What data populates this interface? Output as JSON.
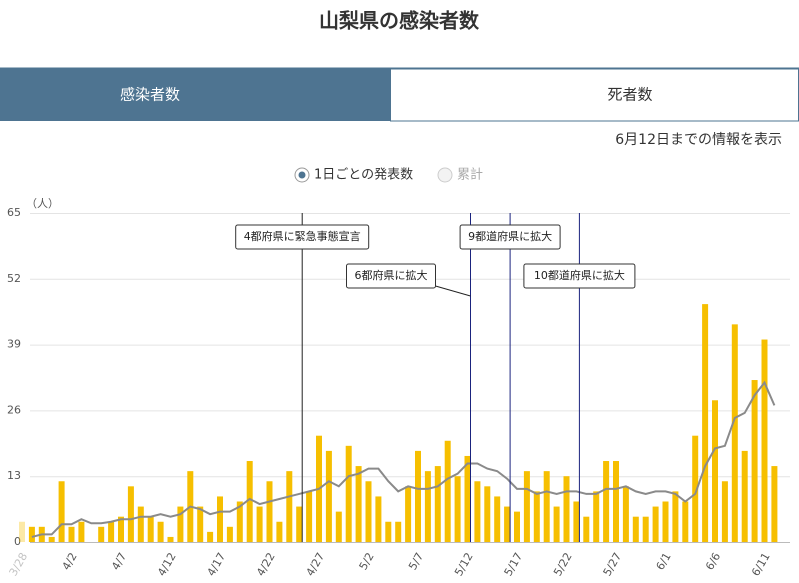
{
  "title": "山梨県の感染者数",
  "tabs": [
    "感染者数",
    "死者数"
  ],
  "info": "6月12日までの情報を表示",
  "options": [
    "1日ごとの発表数",
    "累計"
  ],
  "chart_data": {
    "type": "bar",
    "y_label": "（人）",
    "categories": [
      "3/28",
      null,
      null,
      null,
      null,
      "4/2",
      null,
      null,
      null,
      null,
      "4/7",
      null,
      null,
      null,
      null,
      "4/12",
      null,
      null,
      null,
      null,
      "4/17",
      null,
      null,
      null,
      null,
      "4/22",
      null,
      null,
      null,
      null,
      "4/27",
      null,
      null,
      null,
      null,
      "5/2",
      null,
      null,
      null,
      null,
      "5/7",
      null,
      null,
      null,
      null,
      "5/12",
      null,
      null,
      null,
      null,
      "5/17",
      null,
      null,
      null,
      null,
      "5/22",
      null,
      null,
      null,
      null,
      "5/27",
      null,
      null,
      null,
      null,
      "6/1",
      null,
      null,
      null,
      null,
      "6/6",
      null,
      null,
      null,
      null,
      "6/11",
      null
    ],
    "series": [
      {
        "type": "bar",
        "color": "#f6bf00",
        "values": [
          4,
          3,
          3,
          1,
          12,
          3,
          4,
          0,
          3,
          4,
          5,
          11,
          7,
          5,
          4,
          1,
          7,
          14,
          7,
          2,
          9,
          3,
          8,
          16,
          7,
          12,
          4,
          14,
          7,
          10,
          21,
          18,
          6,
          19,
          15,
          12,
          9,
          4,
          4,
          11,
          18,
          14,
          15,
          20,
          13,
          17,
          12,
          11,
          9,
          7,
          6,
          14,
          10,
          14,
          7,
          13,
          8,
          5,
          10,
          16,
          16,
          11,
          5,
          5,
          7,
          8,
          10,
          8,
          21,
          47,
          28,
          12,
          43,
          18,
          32,
          40,
          15
        ]
      },
      {
        "type": "line",
        "color": "#8a8a8a",
        "values": [
          null,
          1,
          1.5,
          1.5,
          3.5,
          3.5,
          4.5,
          3.7,
          3.7,
          4,
          4.5,
          4.5,
          5,
          5,
          5.5,
          5,
          5.5,
          7,
          6.5,
          5.5,
          6,
          6,
          7,
          8.5,
          7.5,
          8,
          8.5,
          9,
          9.5,
          10,
          10.5,
          12,
          11,
          13,
          13.5,
          14.5,
          14.5,
          12,
          10,
          11,
          10.5,
          10.5,
          11,
          12.5,
          13.5,
          15.5,
          15.5,
          14.5,
          14,
          12.5,
          10.5,
          10.5,
          9.5,
          10,
          9.5,
          10,
          10,
          9.5,
          9.5,
          10.5,
          10.5,
          11,
          10,
          9.5,
          10,
          10,
          9.5,
          8,
          9.5,
          15,
          18.5,
          19,
          24.5,
          25.5,
          29,
          31.5,
          27
        ]
      }
    ],
    "ylim": [
      0,
      65
    ],
    "yticks": [
      0,
      13,
      26,
      39,
      52,
      65
    ],
    "grid": true,
    "annotations": [
      {
        "text": "4都府県に緊急事態宣言",
        "at": 28,
        "color": "#222222"
      },
      {
        "text": "6都府県に拡大",
        "at": 45,
        "color": "#1a237e"
      },
      {
        "text": "9都道府県に拡大",
        "at": 49,
        "color": "#1a237e"
      },
      {
        "text": "10都道府県に拡大",
        "at": 56,
        "color": "#1a237e"
      }
    ]
  }
}
